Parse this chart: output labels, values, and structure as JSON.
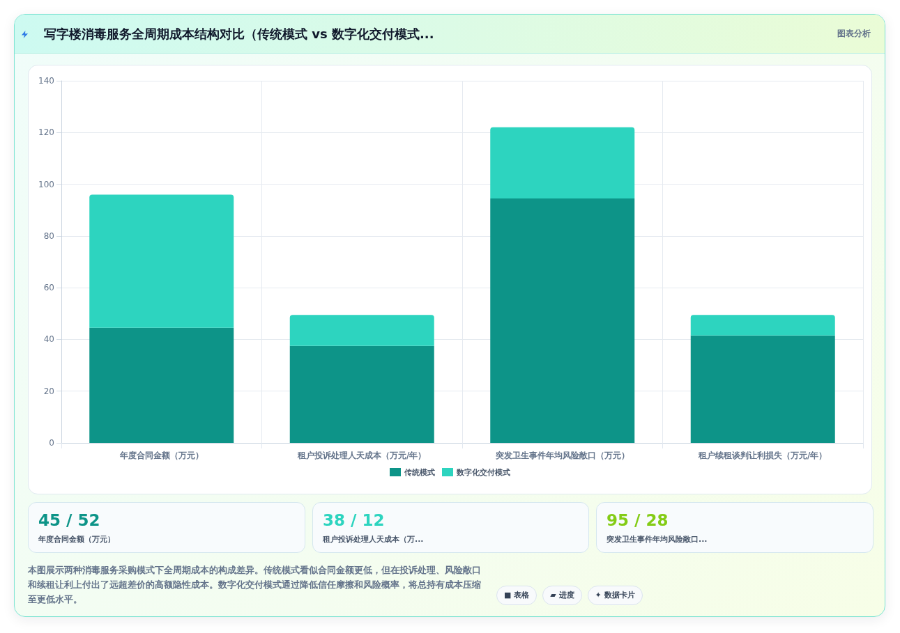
{
  "chart_data": {
    "type": "bar",
    "title": "写字楼消毒服务全周期成本结构对比（传统模式 vs 数字化交付模式...",
    "categories": [
      "年度合同金额（万元）",
      "租户投诉处理人天成本（万元/年）",
      "突发卫生事件年均风险敞口（万元）",
      "租户续租谈判让利损失（万元/年）"
    ],
    "series": [
      {
        "name": "传统模式",
        "color": "#0d9488",
        "values": [
          44.5,
          37.5,
          94.5,
          41.5
        ]
      },
      {
        "name": "数字化交付模式",
        "color": "#2dd4bf",
        "values": [
          51.5,
          12,
          27.5,
          8
        ]
      }
    ],
    "stacked": true,
    "ylim": [
      0,
      140
    ],
    "yticks": [
      0,
      20,
      40,
      60,
      80,
      100,
      120,
      140
    ],
    "grid": true,
    "legend": "bottom",
    "annotations": [
      "图表分析",
      "45 / 52",
      "年度合同金额（万元）",
      "38 / 12",
      "租户投诉处理人天成本（万...",
      "95 / 28",
      "突发卫生事件年均风险敞口...",
      "本图展示两种消毒服务采购模式下全周期成本的构成差异。传统模式看似合同金额更低，但在投诉处理、风险敞口和续租让利上付出了远超差价的高额隐性成本。数字化交付模式通过降低信任摩擦和风险概率，将总持有成本压缩至更低水平。",
      "■ 表格",
      "▰ 进度",
      "✦ 数据卡片"
    ]
  }
}
